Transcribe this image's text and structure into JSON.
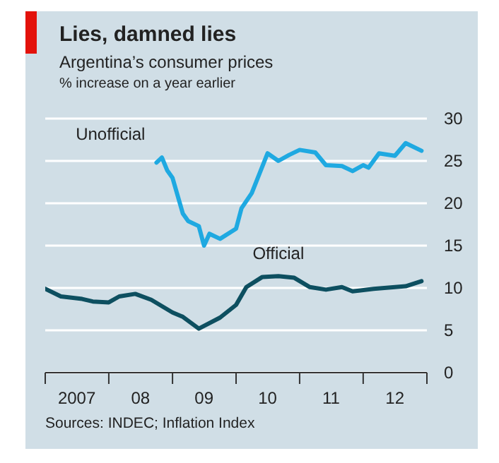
{
  "chart_data": {
    "type": "line",
    "title": "Lies, damned lies",
    "subtitle": "Argentina’s consumer prices",
    "ylabel": "% increase on a year earlier",
    "annotations": [
      "Sources: INDEC; Inflation Index"
    ],
    "series": [
      {
        "name": "Unofficial",
        "color": "#1fa9e1",
        "x": [
          "2008-10",
          "2008-11",
          "2008-12",
          "2009-01",
          "2009-03",
          "2009-04",
          "2009-06",
          "2009-07",
          "2009-08",
          "2009-10",
          "2010-01",
          "2010-02",
          "2010-04",
          "2010-07",
          "2010-09",
          "2010-11",
          "2011-01",
          "2011-04",
          "2011-06",
          "2011-09",
          "2011-11",
          "2012-01",
          "2012-02",
          "2012-04",
          "2012-07",
          "2012-09",
          "2012-12"
        ],
        "values": [
          24.8,
          25.4,
          23.9,
          23.0,
          18.8,
          17.9,
          17.3,
          15.0,
          16.4,
          15.8,
          17.0,
          19.4,
          21.2,
          25.9,
          25.0,
          25.7,
          26.3,
          26.0,
          24.5,
          24.4,
          23.8,
          24.5,
          24.2,
          25.9,
          25.6,
          27.1,
          26.2
        ]
      },
      {
        "name": "Official",
        "color": "#0d4f60",
        "x": [
          "2007-01",
          "2007-04",
          "2007-08",
          "2007-10",
          "2008-01",
          "2008-03",
          "2008-06",
          "2008-09",
          "2009-01",
          "2009-03",
          "2009-06",
          "2009-10",
          "2010-01",
          "2010-03",
          "2010-06",
          "2010-09",
          "2010-12",
          "2011-03",
          "2011-06",
          "2011-09",
          "2011-11",
          "2012-03",
          "2012-09",
          "2012-12"
        ],
        "values": [
          9.9,
          9.0,
          8.7,
          8.4,
          8.3,
          9.0,
          9.3,
          8.6,
          7.1,
          6.6,
          5.2,
          6.5,
          8.0,
          10.1,
          11.3,
          11.4,
          11.2,
          10.1,
          9.8,
          10.1,
          9.6,
          9.9,
          10.2,
          10.8
        ]
      }
    ],
    "xlim": [
      "2007-01",
      "2013-01"
    ],
    "xticks": [
      {
        "value": "2007-01",
        "label": null
      },
      {
        "value": "2007-07",
        "label": "2007"
      },
      {
        "value": "2008-01",
        "label": null
      },
      {
        "value": "2008-07",
        "label": "08"
      },
      {
        "value": "2009-01",
        "label": null
      },
      {
        "value": "2009-07",
        "label": "09"
      },
      {
        "value": "2010-01",
        "label": null
      },
      {
        "value": "2010-07",
        "label": "10"
      },
      {
        "value": "2011-01",
        "label": null
      },
      {
        "value": "2011-07",
        "label": "11"
      },
      {
        "value": "2012-01",
        "label": null
      },
      {
        "value": "2012-07",
        "label": "12"
      },
      {
        "value": "2013-01",
        "label": null
      }
    ],
    "ylim": [
      0,
      30
    ],
    "yticks": [
      0,
      5,
      10,
      15,
      20,
      25,
      30
    ],
    "grid": "y",
    "legend": false,
    "line_style": "solid",
    "marker": "none"
  }
}
